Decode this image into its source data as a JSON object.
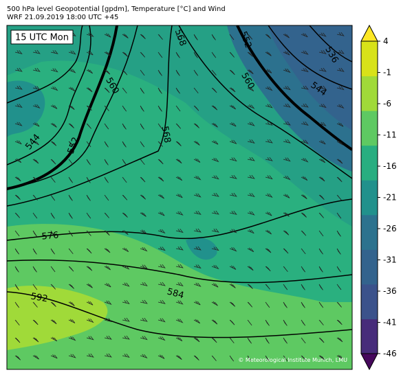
{
  "header": {
    "title": "500 hPa level Geopotential [gpdm], Temperature [°C] and Wind",
    "subtitle": "WRF 21.09.2019 18:00 UTC +45"
  },
  "map": {
    "time_label": "15 UTC Mon",
    "contour_labels": [
      568,
      552,
      536,
      560,
      560,
      544,
      544,
      552,
      568,
      576,
      592,
      584
    ],
    "credit": "© Meteorological Institute Munich, LMU"
  },
  "colorbar": {
    "ticks": [
      4,
      -1,
      -6,
      -11,
      -16,
      -21,
      -26,
      -31,
      -36,
      -41,
      -46
    ],
    "lim": [
      -46,
      4
    ],
    "colors": [
      "#46085c",
      "#472c7a",
      "#3b528b",
      "#33638d",
      "#2c728e",
      "#21918c",
      "#28ae80",
      "#5ec962",
      "#a0da39",
      "#d8e219",
      "#fde725"
    ]
  }
}
